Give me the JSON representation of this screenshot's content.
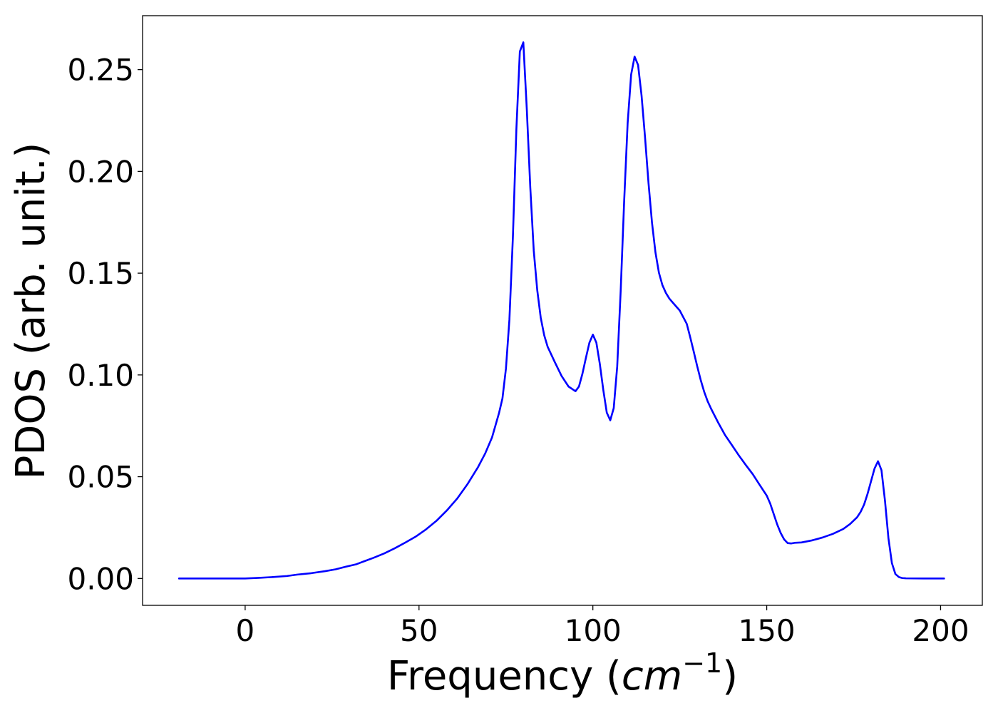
{
  "chart_data": {
    "type": "line",
    "title": "",
    "xlabel": "Frequency (cm⁻¹)",
    "xlabel_parts": {
      "prefix": "Frequency (",
      "unit": "cm",
      "exponent": "−1",
      "suffix": ")"
    },
    "ylabel": "PDOS (arb. unit.)",
    "xlim": [
      -29.5,
      212
    ],
    "ylim": [
      -0.0132,
      0.2765
    ],
    "xticks": [
      0,
      50,
      100,
      150,
      200
    ],
    "xtick_labels": [
      "0",
      "50",
      "100",
      "150",
      "200"
    ],
    "yticks": [
      0.0,
      0.05,
      0.1,
      0.15,
      0.2,
      0.25
    ],
    "ytick_labels": [
      "0.00",
      "0.05",
      "0.10",
      "0.15",
      "0.20",
      "0.25"
    ],
    "grid": false,
    "line_color": "#0000ff",
    "series": [
      {
        "x": [
          -19,
          -10,
          0,
          4,
          8,
          12,
          15,
          19,
          23,
          26,
          29,
          32,
          34,
          37,
          40,
          43,
          46,
          49,
          52,
          55,
          58,
          61,
          64,
          67,
          69,
          71,
          73,
          74,
          75,
          76,
          77,
          78,
          79,
          80,
          81,
          82,
          83,
          84,
          85,
          86,
          87,
          89,
          91,
          93,
          95,
          96,
          97,
          98,
          99,
          100,
          101,
          102,
          103,
          104,
          105,
          106,
          107,
          108,
          109,
          110,
          111,
          112,
          113,
          114,
          115,
          116,
          117,
          118,
          119,
          120,
          121,
          122,
          123,
          125,
          127,
          128,
          129,
          130,
          131,
          132,
          133,
          134,
          136,
          138,
          140,
          142,
          144,
          146,
          148,
          150,
          151,
          152,
          153,
          154,
          155,
          156,
          157,
          158,
          160,
          163,
          166,
          169,
          172,
          174,
          176,
          177,
          178,
          179,
          180,
          181,
          182,
          183,
          184,
          185,
          186,
          187,
          188,
          189,
          190,
          195,
          201
        ],
        "y": [
          0,
          0,
          0,
          0.0003,
          0.0007,
          0.0012,
          0.0019,
          0.0026,
          0.0036,
          0.0045,
          0.0058,
          0.007,
          0.0083,
          0.0102,
          0.0123,
          0.0148,
          0.0176,
          0.0205,
          0.0241,
          0.0283,
          0.0334,
          0.0393,
          0.0465,
          0.0548,
          0.0613,
          0.0693,
          0.0812,
          0.0885,
          0.1031,
          0.1272,
          0.1677,
          0.2207,
          0.2589,
          0.2634,
          0.2305,
          0.1922,
          0.161,
          0.1417,
          0.1282,
          0.1195,
          0.1138,
          0.1065,
          0.0995,
          0.0943,
          0.092,
          0.0943,
          0.1006,
          0.1084,
          0.1158,
          0.1198,
          0.1159,
          0.1054,
          0.0926,
          0.0815,
          0.0777,
          0.0837,
          0.1042,
          0.1413,
          0.1854,
          0.2237,
          0.2475,
          0.2564,
          0.2523,
          0.2373,
          0.2168,
          0.1943,
          0.1749,
          0.1602,
          0.1502,
          0.1441,
          0.1403,
          0.1375,
          0.1355,
          0.1316,
          0.1251,
          0.1185,
          0.1115,
          0.1043,
          0.0976,
          0.0918,
          0.0871,
          0.0834,
          0.0767,
          0.0705,
          0.0655,
          0.0604,
          0.0557,
          0.0512,
          0.0459,
          0.0407,
          0.0368,
          0.0317,
          0.0266,
          0.0224,
          0.0192,
          0.0174,
          0.0172,
          0.0175,
          0.0177,
          0.0187,
          0.0201,
          0.0219,
          0.0243,
          0.0268,
          0.0301,
          0.0327,
          0.0363,
          0.0416,
          0.0478,
          0.054,
          0.0576,
          0.0532,
          0.0383,
          0.0198,
          0.0075,
          0.0022,
          0.0007,
          0.0002,
          0.0001,
          0,
          0
        ]
      }
    ]
  }
}
